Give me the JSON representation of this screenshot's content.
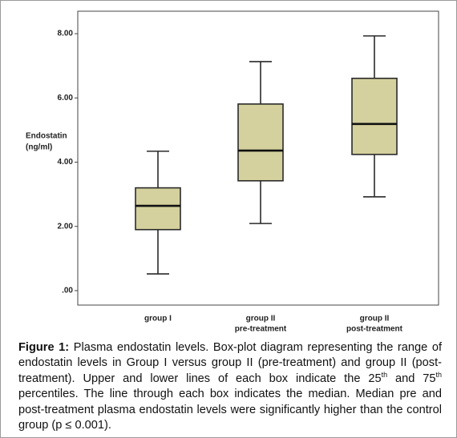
{
  "chart_data": {
    "type": "box",
    "y_label": [
      "Endostatin",
      "(ng/ml)"
    ],
    "categories": [
      [
        "group I"
      ],
      [
        "group II",
        "pre-treatment"
      ],
      [
        "group II",
        "post-treatment"
      ]
    ],
    "whisker_low": [
      0.52,
      2.09,
      2.92
    ],
    "q1": [
      1.9,
      3.42,
      4.24
    ],
    "median": [
      2.64,
      4.36,
      5.19
    ],
    "q3": [
      3.2,
      5.81,
      6.61
    ],
    "whisker_high": [
      4.34,
      7.13,
      7.93
    ],
    "color": "#d4d19e",
    "ylim": [
      -0.45,
      8.7
    ],
    "yticks": [
      {
        "value": 0,
        "label": ".00"
      },
      {
        "value": 2,
        "label": "2.00"
      },
      {
        "value": 4,
        "label": "4.00"
      },
      {
        "value": 6,
        "label": "6.00"
      },
      {
        "value": 8,
        "label": "8.00"
      }
    ]
  },
  "caption": {
    "label": "Figure 1:",
    "text_1": " Plasma endostatin levels. Box-plot diagram representing the range of endostatin levels in Group I versus group II (pre-treatment) and group II (post-treatment). Upper and lower lines of each box indicate the 25",
    "sup_1": "th",
    "text_2": " and 75",
    "sup_2": "th",
    "text_3": " percentiles. The line through each box indicates the median. Median pre and post-treatment plasma endostatin levels were significantly higher than the control group (p ≤ 0.001)."
  }
}
